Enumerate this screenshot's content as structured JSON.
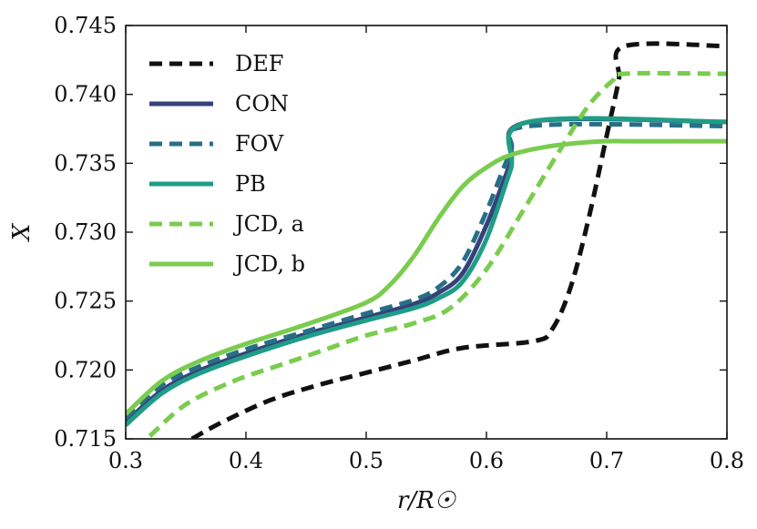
{
  "chart_data": {
    "type": "line",
    "title": "",
    "xlabel": "r/R☉",
    "ylabel": "X",
    "xlim": [
      0.3,
      0.8
    ],
    "ylim": [
      0.715,
      0.745
    ],
    "grid": false,
    "legend_position": "top-left",
    "x_ticks": [
      {
        "value": 0.3,
        "label": "0.3"
      },
      {
        "value": 0.4,
        "label": "0.4"
      },
      {
        "value": 0.5,
        "label": "0.5"
      },
      {
        "value": 0.6,
        "label": "0.6"
      },
      {
        "value": 0.7,
        "label": "0.7"
      },
      {
        "value": 0.8,
        "label": "0.8"
      }
    ],
    "y_ticks": [
      {
        "value": 0.715,
        "label": "0.715"
      },
      {
        "value": 0.72,
        "label": "0.720"
      },
      {
        "value": 0.725,
        "label": "0.725"
      },
      {
        "value": 0.73,
        "label": "0.730"
      },
      {
        "value": 0.735,
        "label": "0.735"
      },
      {
        "value": 0.74,
        "label": "0.740"
      },
      {
        "value": 0.745,
        "label": "0.745"
      }
    ],
    "series": [
      {
        "name": "DEF",
        "color": "#111111",
        "dash": "dashed",
        "x": [
          0.355,
          0.38,
          0.42,
          0.46,
          0.5,
          0.54,
          0.58,
          0.64,
          0.655,
          0.67,
          0.685,
          0.7,
          0.71,
          0.715,
          0.8
        ],
        "y": [
          0.715,
          0.7162,
          0.7178,
          0.7189,
          0.7198,
          0.7207,
          0.7216,
          0.7221,
          0.723,
          0.726,
          0.731,
          0.737,
          0.741,
          0.7435,
          0.7435
        ]
      },
      {
        "name": "CON",
        "color": "#35427a",
        "dash": "solid",
        "x": [
          0.3,
          0.33,
          0.36,
          0.4,
          0.45,
          0.5,
          0.54,
          0.56,
          0.58,
          0.6,
          0.62,
          0.635,
          0.8
        ],
        "y": [
          0.7162,
          0.7185,
          0.7199,
          0.7212,
          0.7226,
          0.7238,
          0.7248,
          0.7256,
          0.727,
          0.7305,
          0.735,
          0.738,
          0.738
        ]
      },
      {
        "name": "FOV",
        "color": "#276f86",
        "dash": "dashed",
        "x": [
          0.3,
          0.33,
          0.36,
          0.4,
          0.45,
          0.5,
          0.54,
          0.56,
          0.58,
          0.6,
          0.62,
          0.635,
          0.8
        ],
        "y": [
          0.7165,
          0.7189,
          0.7202,
          0.7215,
          0.7228,
          0.7241,
          0.7251,
          0.726,
          0.7278,
          0.7315,
          0.7358,
          0.7377,
          0.7377
        ]
      },
      {
        "name": "PB",
        "color": "#1f9d87",
        "dash": "solid",
        "x": [
          0.3,
          0.33,
          0.36,
          0.4,
          0.45,
          0.5,
          0.54,
          0.56,
          0.58,
          0.6,
          0.62,
          0.635,
          0.8
        ],
        "y": [
          0.716,
          0.7183,
          0.7197,
          0.721,
          0.7224,
          0.7236,
          0.7245,
          0.7252,
          0.7264,
          0.7295,
          0.7345,
          0.738,
          0.738
        ]
      },
      {
        "name": "JCD, a",
        "color": "#7acc4e",
        "dash": "dashed",
        "x": [
          0.32,
          0.35,
          0.39,
          0.43,
          0.47,
          0.5,
          0.54,
          0.57,
          0.6,
          0.63,
          0.66,
          0.685,
          0.705,
          0.715,
          0.8
        ],
        "y": [
          0.7152,
          0.7175,
          0.7192,
          0.7204,
          0.7216,
          0.7225,
          0.7234,
          0.7245,
          0.7273,
          0.7315,
          0.7358,
          0.7392,
          0.741,
          0.7415,
          0.7415
        ]
      },
      {
        "name": "JCD, b",
        "color": "#7acc4e",
        "dash": "solid",
        "x": [
          0.3,
          0.33,
          0.36,
          0.4,
          0.45,
          0.5,
          0.52,
          0.54,
          0.56,
          0.58,
          0.6,
          0.62,
          0.65,
          0.68,
          0.7,
          0.72,
          0.8
        ],
        "y": [
          0.7168,
          0.7192,
          0.7206,
          0.7219,
          0.7233,
          0.7249,
          0.7262,
          0.7283,
          0.731,
          0.7333,
          0.7347,
          0.7356,
          0.7362,
          0.7365,
          0.7366,
          0.7366,
          0.7366
        ]
      }
    ]
  }
}
